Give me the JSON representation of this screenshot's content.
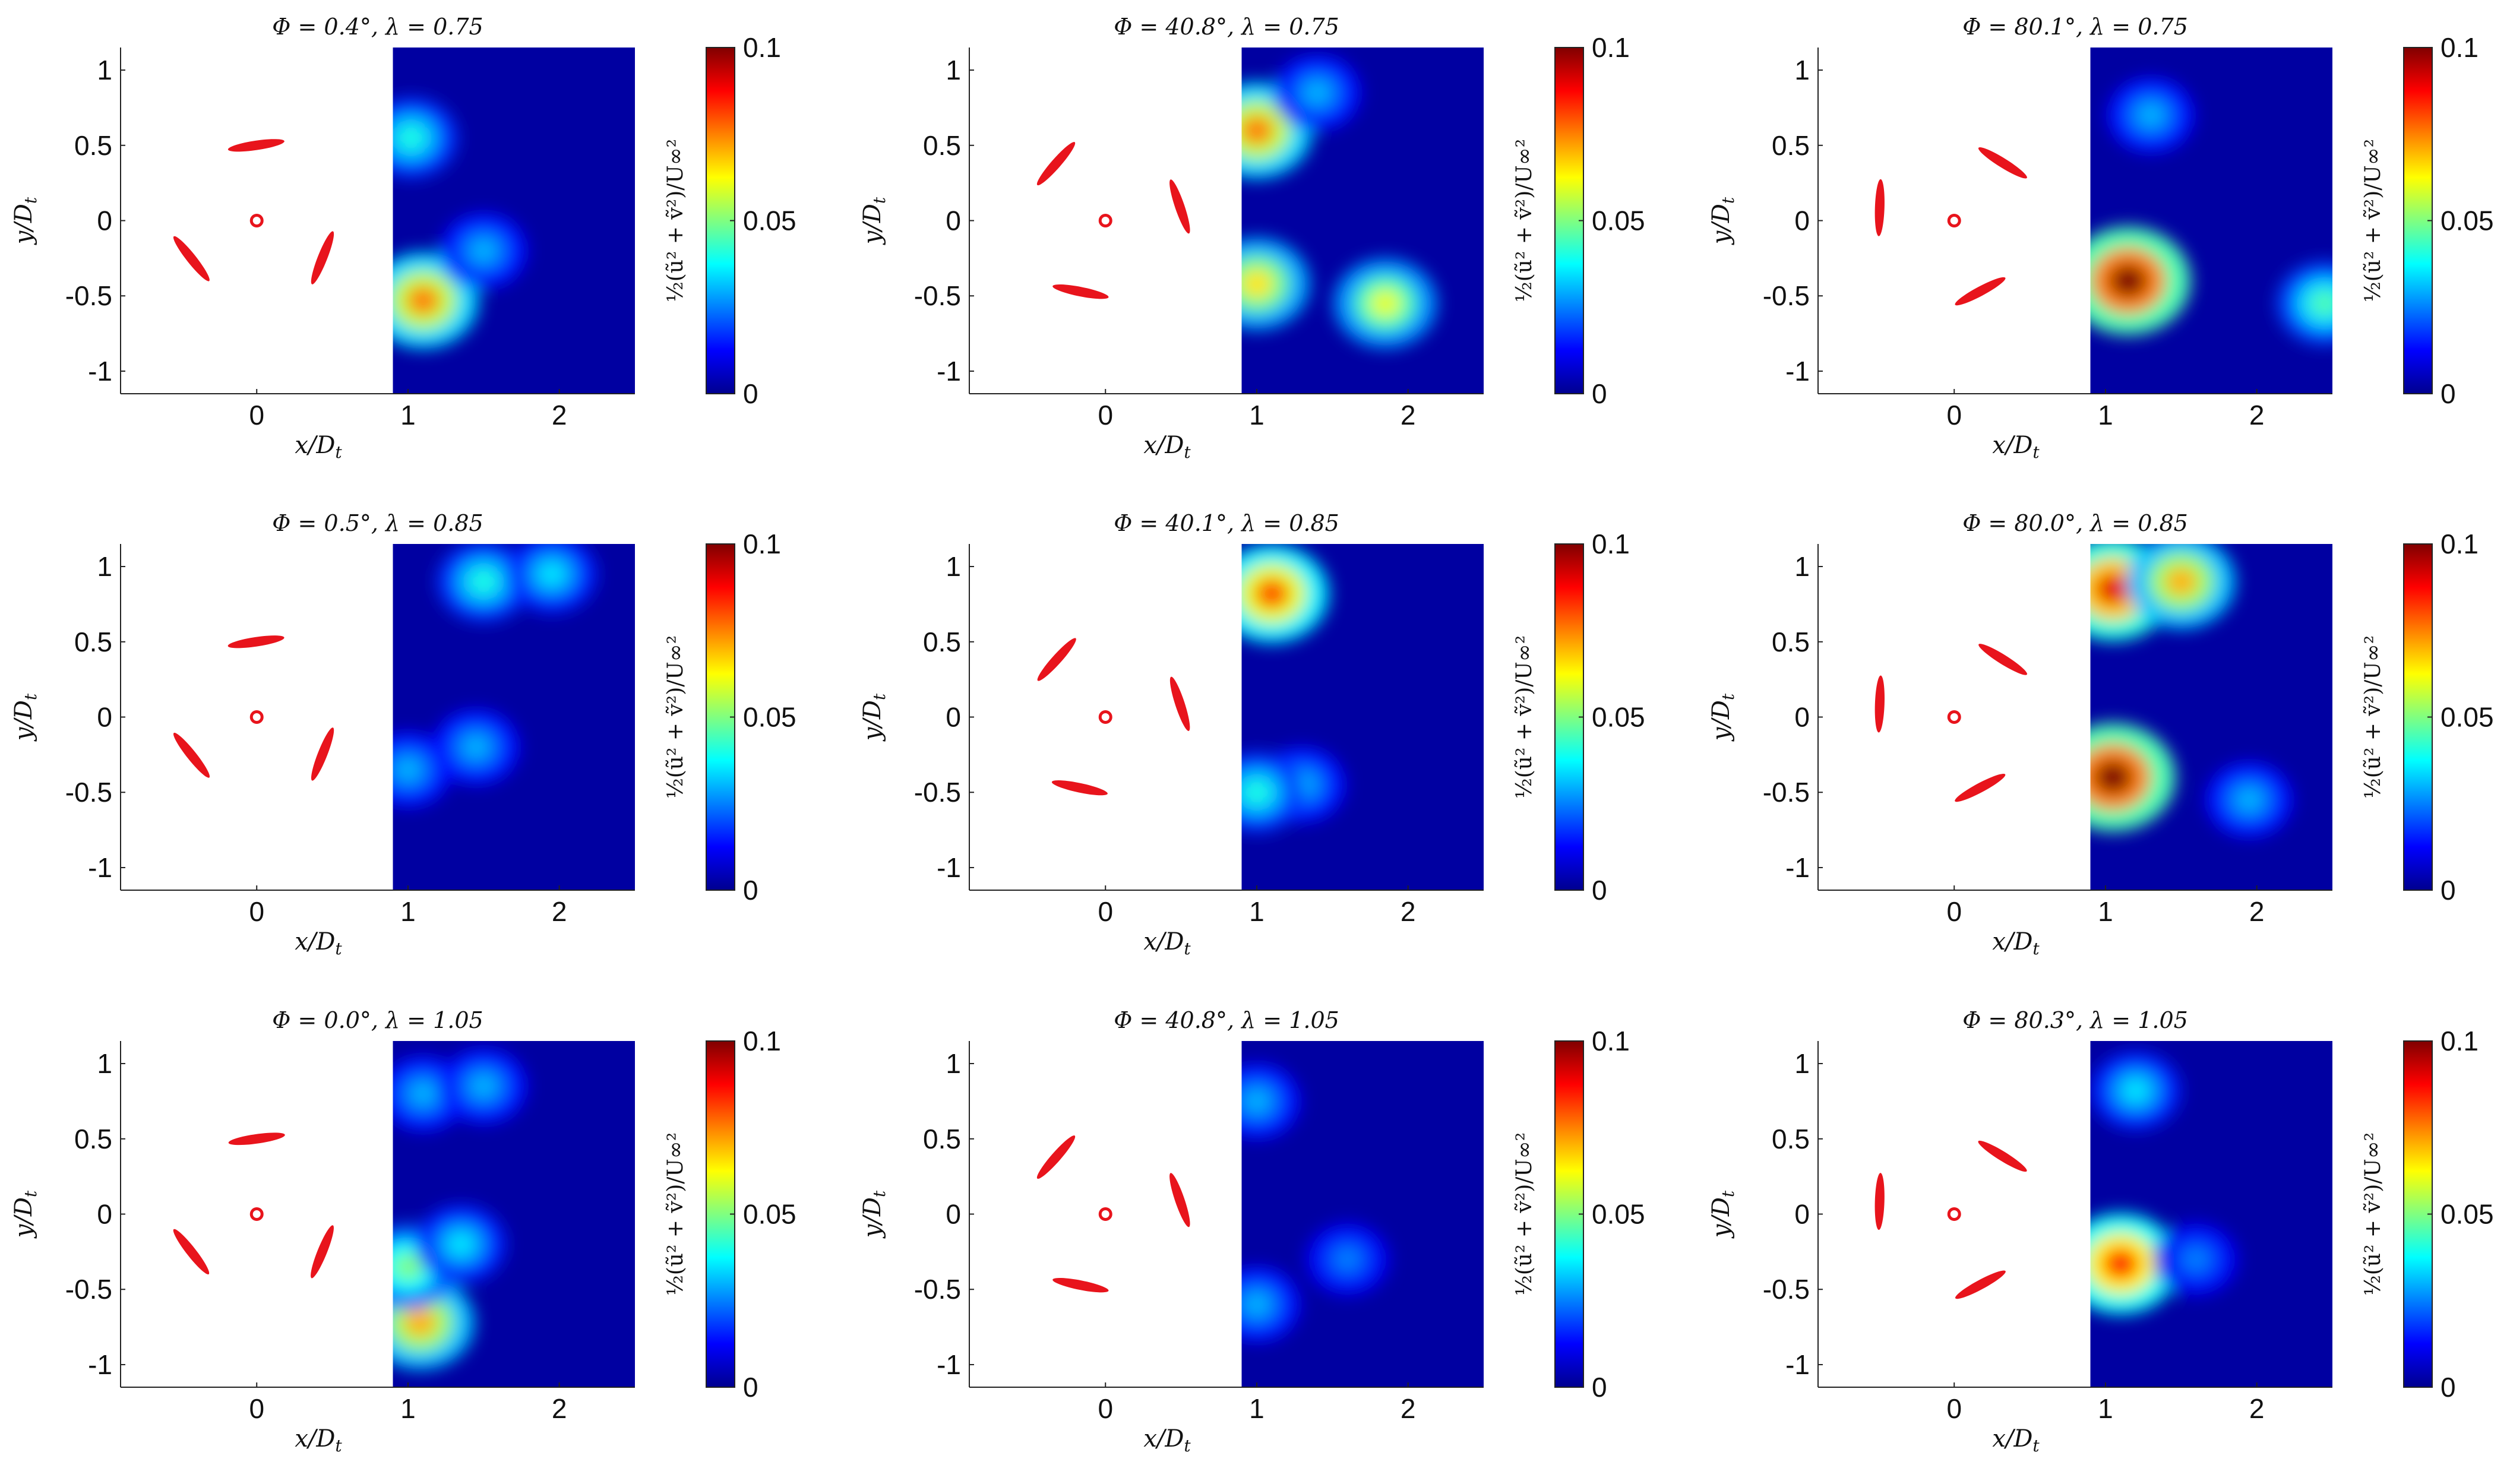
{
  "figure": {
    "colormap": "jet",
    "colormap_stops": [
      "#00008f",
      "#0000ff",
      "#0080ff",
      "#00ffff",
      "#80ff80",
      "#ffff00",
      "#ff8000",
      "#ff0000",
      "#800000"
    ],
    "blade_color": "#e8141c",
    "background_field_color": "#00008f"
  },
  "chart_data": [
    {
      "type": "heatmap",
      "row": 0,
      "col": 0,
      "title": "Φ = 0.4°, λ = 0.75",
      "phi_deg": 0.4,
      "lambda": 0.75,
      "xlabel": "x/D_t",
      "ylabel": "y/D_t",
      "xticks": [
        "0",
        "1",
        "2"
      ],
      "yticks": [
        "1",
        "0.5",
        "0",
        "-0.5",
        "-1"
      ],
      "xlim": [
        -0.9,
        2.5
      ],
      "ylim": [
        -1.15,
        1.15
      ],
      "field_xlim": [
        0.9,
        2.5
      ],
      "colorbar": {
        "label": "½(ũ² + ṽ²)/U∞²",
        "ticks": [
          "0.1",
          "0.05",
          "0"
        ],
        "range": [
          0,
          0.1
        ]
      },
      "hotspots": [
        {
          "x": 1.1,
          "y": -0.53,
          "v": 0.075
        },
        {
          "x": 1.02,
          "y": 0.55,
          "v": 0.04
        },
        {
          "x": 1.5,
          "y": -0.2,
          "v": 0.03
        }
      ]
    },
    {
      "type": "heatmap",
      "row": 0,
      "col": 1,
      "title": "Φ = 40.8°, λ = 0.75",
      "phi_deg": 40.8,
      "lambda": 0.75,
      "xlabel": "x/D_t",
      "ylabel": "y/D_t",
      "xticks": [
        "0",
        "1",
        "2"
      ],
      "yticks": [
        "1",
        "0.5",
        "0",
        "-0.5",
        "-1"
      ],
      "xlim": [
        -0.9,
        2.5
      ],
      "ylim": [
        -1.15,
        1.15
      ],
      "field_xlim": [
        0.9,
        2.5
      ],
      "colorbar": {
        "label": "½(ũ² + ṽ²)/U∞²",
        "ticks": [
          "0.1",
          "0.05",
          "0"
        ],
        "range": [
          0,
          0.1
        ]
      },
      "hotspots": [
        {
          "x": 1.0,
          "y": 0.6,
          "v": 0.075
        },
        {
          "x": 1.0,
          "y": -0.42,
          "v": 0.065
        },
        {
          "x": 1.85,
          "y": -0.55,
          "v": 0.06
        },
        {
          "x": 1.4,
          "y": 0.85,
          "v": 0.03
        }
      ]
    },
    {
      "type": "heatmap",
      "row": 0,
      "col": 2,
      "title": "Φ = 80.1°, λ = 0.75",
      "phi_deg": 80.1,
      "lambda": 0.75,
      "xlabel": "x/D_t",
      "ylabel": "y/D_t",
      "xticks": [
        "0",
        "1",
        "2"
      ],
      "yticks": [
        "1",
        "0.5",
        "0",
        "-0.5",
        "-1"
      ],
      "xlim": [
        -0.9,
        2.5
      ],
      "ylim": [
        -1.15,
        1.15
      ],
      "field_xlim": [
        0.9,
        2.5
      ],
      "colorbar": {
        "label": "½(ũ² + ṽ²)/U∞²",
        "ticks": [
          "0.1",
          "0.05",
          "0"
        ],
        "range": [
          0,
          0.1
        ]
      },
      "hotspots": [
        {
          "x": 1.15,
          "y": -0.4,
          "v": 0.1
        },
        {
          "x": 2.45,
          "y": -0.55,
          "v": 0.045
        },
        {
          "x": 1.3,
          "y": 0.7,
          "v": 0.03
        }
      ]
    },
    {
      "type": "heatmap",
      "row": 1,
      "col": 0,
      "title": "Φ = 0.5°, λ = 0.85",
      "phi_deg": 0.5,
      "lambda": 0.85,
      "xlabel": "x/D_t",
      "ylabel": "y/D_t",
      "xticks": [
        "0",
        "1",
        "2"
      ],
      "yticks": [
        "1",
        "0.5",
        "0",
        "-0.5",
        "-1"
      ],
      "xlim": [
        -0.9,
        2.5
      ],
      "ylim": [
        -1.15,
        1.15
      ],
      "field_xlim": [
        0.9,
        2.5
      ],
      "colorbar": {
        "label": "½(ũ² + ṽ²)/U∞²",
        "ticks": [
          "0.1",
          "0.05",
          "0"
        ],
        "range": [
          0,
          0.1
        ]
      },
      "hotspots": [
        {
          "x": 1.5,
          "y": 0.9,
          "v": 0.04
        },
        {
          "x": 1.95,
          "y": 0.95,
          "v": 0.035
        },
        {
          "x": 1.0,
          "y": -0.35,
          "v": 0.03
        },
        {
          "x": 1.45,
          "y": -0.2,
          "v": 0.03
        }
      ]
    },
    {
      "type": "heatmap",
      "row": 1,
      "col": 1,
      "title": "Φ = 40.1°, λ = 0.85",
      "phi_deg": 40.1,
      "lambda": 0.85,
      "xlabel": "x/D_t",
      "ylabel": "y/D_t",
      "xticks": [
        "0",
        "1",
        "2"
      ],
      "yticks": [
        "1",
        "0.5",
        "0",
        "-0.5",
        "-1"
      ],
      "xlim": [
        -0.9,
        2.5
      ],
      "ylim": [
        -1.15,
        1.15
      ],
      "field_xlim": [
        0.9,
        2.5
      ],
      "colorbar": {
        "label": "½(ũ² + ṽ²)/U∞²",
        "ticks": [
          "0.1",
          "0.05",
          "0"
        ],
        "range": [
          0,
          0.1
        ]
      },
      "hotspots": [
        {
          "x": 1.1,
          "y": 0.82,
          "v": 0.08
        },
        {
          "x": 1.3,
          "y": -0.45,
          "v": 0.03
        },
        {
          "x": 1.0,
          "y": -0.5,
          "v": 0.04
        }
      ]
    },
    {
      "type": "heatmap",
      "row": 1,
      "col": 2,
      "title": "Φ = 80.0°, λ = 0.85",
      "phi_deg": 80.0,
      "lambda": 0.85,
      "xlabel": "x/D_t",
      "ylabel": "y/D_t",
      "xticks": [
        "0",
        "1",
        "2"
      ],
      "yticks": [
        "1",
        "0.5",
        "0",
        "-0.5",
        "-1"
      ],
      "xlim": [
        -0.9,
        2.5
      ],
      "ylim": [
        -1.15,
        1.15
      ],
      "field_xlim": [
        0.9,
        2.5
      ],
      "colorbar": {
        "label": "½(ũ² + ṽ²)/U∞²",
        "ticks": [
          "0.1",
          "0.05",
          "0"
        ],
        "range": [
          0,
          0.1
        ]
      },
      "hotspots": [
        {
          "x": 1.05,
          "y": 0.85,
          "v": 0.09
        },
        {
          "x": 1.5,
          "y": 0.9,
          "v": 0.07
        },
        {
          "x": 1.05,
          "y": -0.4,
          "v": 0.1
        },
        {
          "x": 1.95,
          "y": -0.55,
          "v": 0.03
        }
      ]
    },
    {
      "type": "heatmap",
      "row": 2,
      "col": 0,
      "title": "Φ = 0.0°, λ = 1.05",
      "phi_deg": 0.0,
      "lambda": 1.05,
      "xlabel": "x/D_t",
      "ylabel": "y/D_t",
      "xticks": [
        "0",
        "1",
        "2"
      ],
      "yticks": [
        "1",
        "0.5",
        "0",
        "-0.5",
        "-1"
      ],
      "xlim": [
        -0.9,
        2.5
      ],
      "ylim": [
        -1.15,
        1.15
      ],
      "field_xlim": [
        0.9,
        2.5
      ],
      "colorbar": {
        "label": "½(ũ² + ṽ²)/U∞²",
        "ticks": [
          "0.1",
          "0.05",
          "0"
        ],
        "range": [
          0,
          0.1
        ]
      },
      "hotspots": [
        {
          "x": 1.08,
          "y": -0.72,
          "v": 0.07
        },
        {
          "x": 1.0,
          "y": -0.35,
          "v": 0.05
        },
        {
          "x": 1.35,
          "y": -0.2,
          "v": 0.035
        },
        {
          "x": 1.1,
          "y": 0.8,
          "v": 0.03
        },
        {
          "x": 1.5,
          "y": 0.85,
          "v": 0.03
        }
      ]
    },
    {
      "type": "heatmap",
      "row": 2,
      "col": 1,
      "title": "Φ = 40.8°, λ = 1.05",
      "phi_deg": 40.8,
      "lambda": 1.05,
      "xlabel": "x/D_t",
      "ylabel": "y/D_t",
      "xticks": [
        "0",
        "1",
        "2"
      ],
      "yticks": [
        "1",
        "0.5",
        "0",
        "-0.5",
        "-1"
      ],
      "xlim": [
        -0.9,
        2.5
      ],
      "ylim": [
        -1.15,
        1.15
      ],
      "field_xlim": [
        0.9,
        2.5
      ],
      "colorbar": {
        "label": "½(ũ² + ṽ²)/U∞²",
        "ticks": [
          "0.1",
          "0.05",
          "0"
        ],
        "range": [
          0,
          0.1
        ]
      },
      "hotspots": [
        {
          "x": 1.0,
          "y": 0.75,
          "v": 0.03
        },
        {
          "x": 1.0,
          "y": -0.6,
          "v": 0.03
        },
        {
          "x": 1.6,
          "y": -0.3,
          "v": 0.025
        }
      ]
    },
    {
      "type": "heatmap",
      "row": 2,
      "col": 2,
      "title": "Φ = 80.3°, λ = 1.05",
      "phi_deg": 80.3,
      "lambda": 1.05,
      "xlabel": "x/D_t",
      "ylabel": "y/D_t",
      "xticks": [
        "0",
        "1",
        "2"
      ],
      "yticks": [
        "1",
        "0.5",
        "0",
        "-0.5",
        "-1"
      ],
      "xlim": [
        -0.9,
        2.5
      ],
      "ylim": [
        -1.15,
        1.15
      ],
      "field_xlim": [
        0.9,
        2.5
      ],
      "colorbar": {
        "label": "½(ũ² + ṽ²)/U∞²",
        "ticks": [
          "0.1",
          "0.05",
          "0"
        ],
        "range": [
          0,
          0.1
        ]
      },
      "hotspots": [
        {
          "x": 1.1,
          "y": -0.33,
          "v": 0.085
        },
        {
          "x": 1.2,
          "y": 0.82,
          "v": 0.035
        },
        {
          "x": 1.6,
          "y": -0.3,
          "v": 0.025
        }
      ]
    }
  ]
}
